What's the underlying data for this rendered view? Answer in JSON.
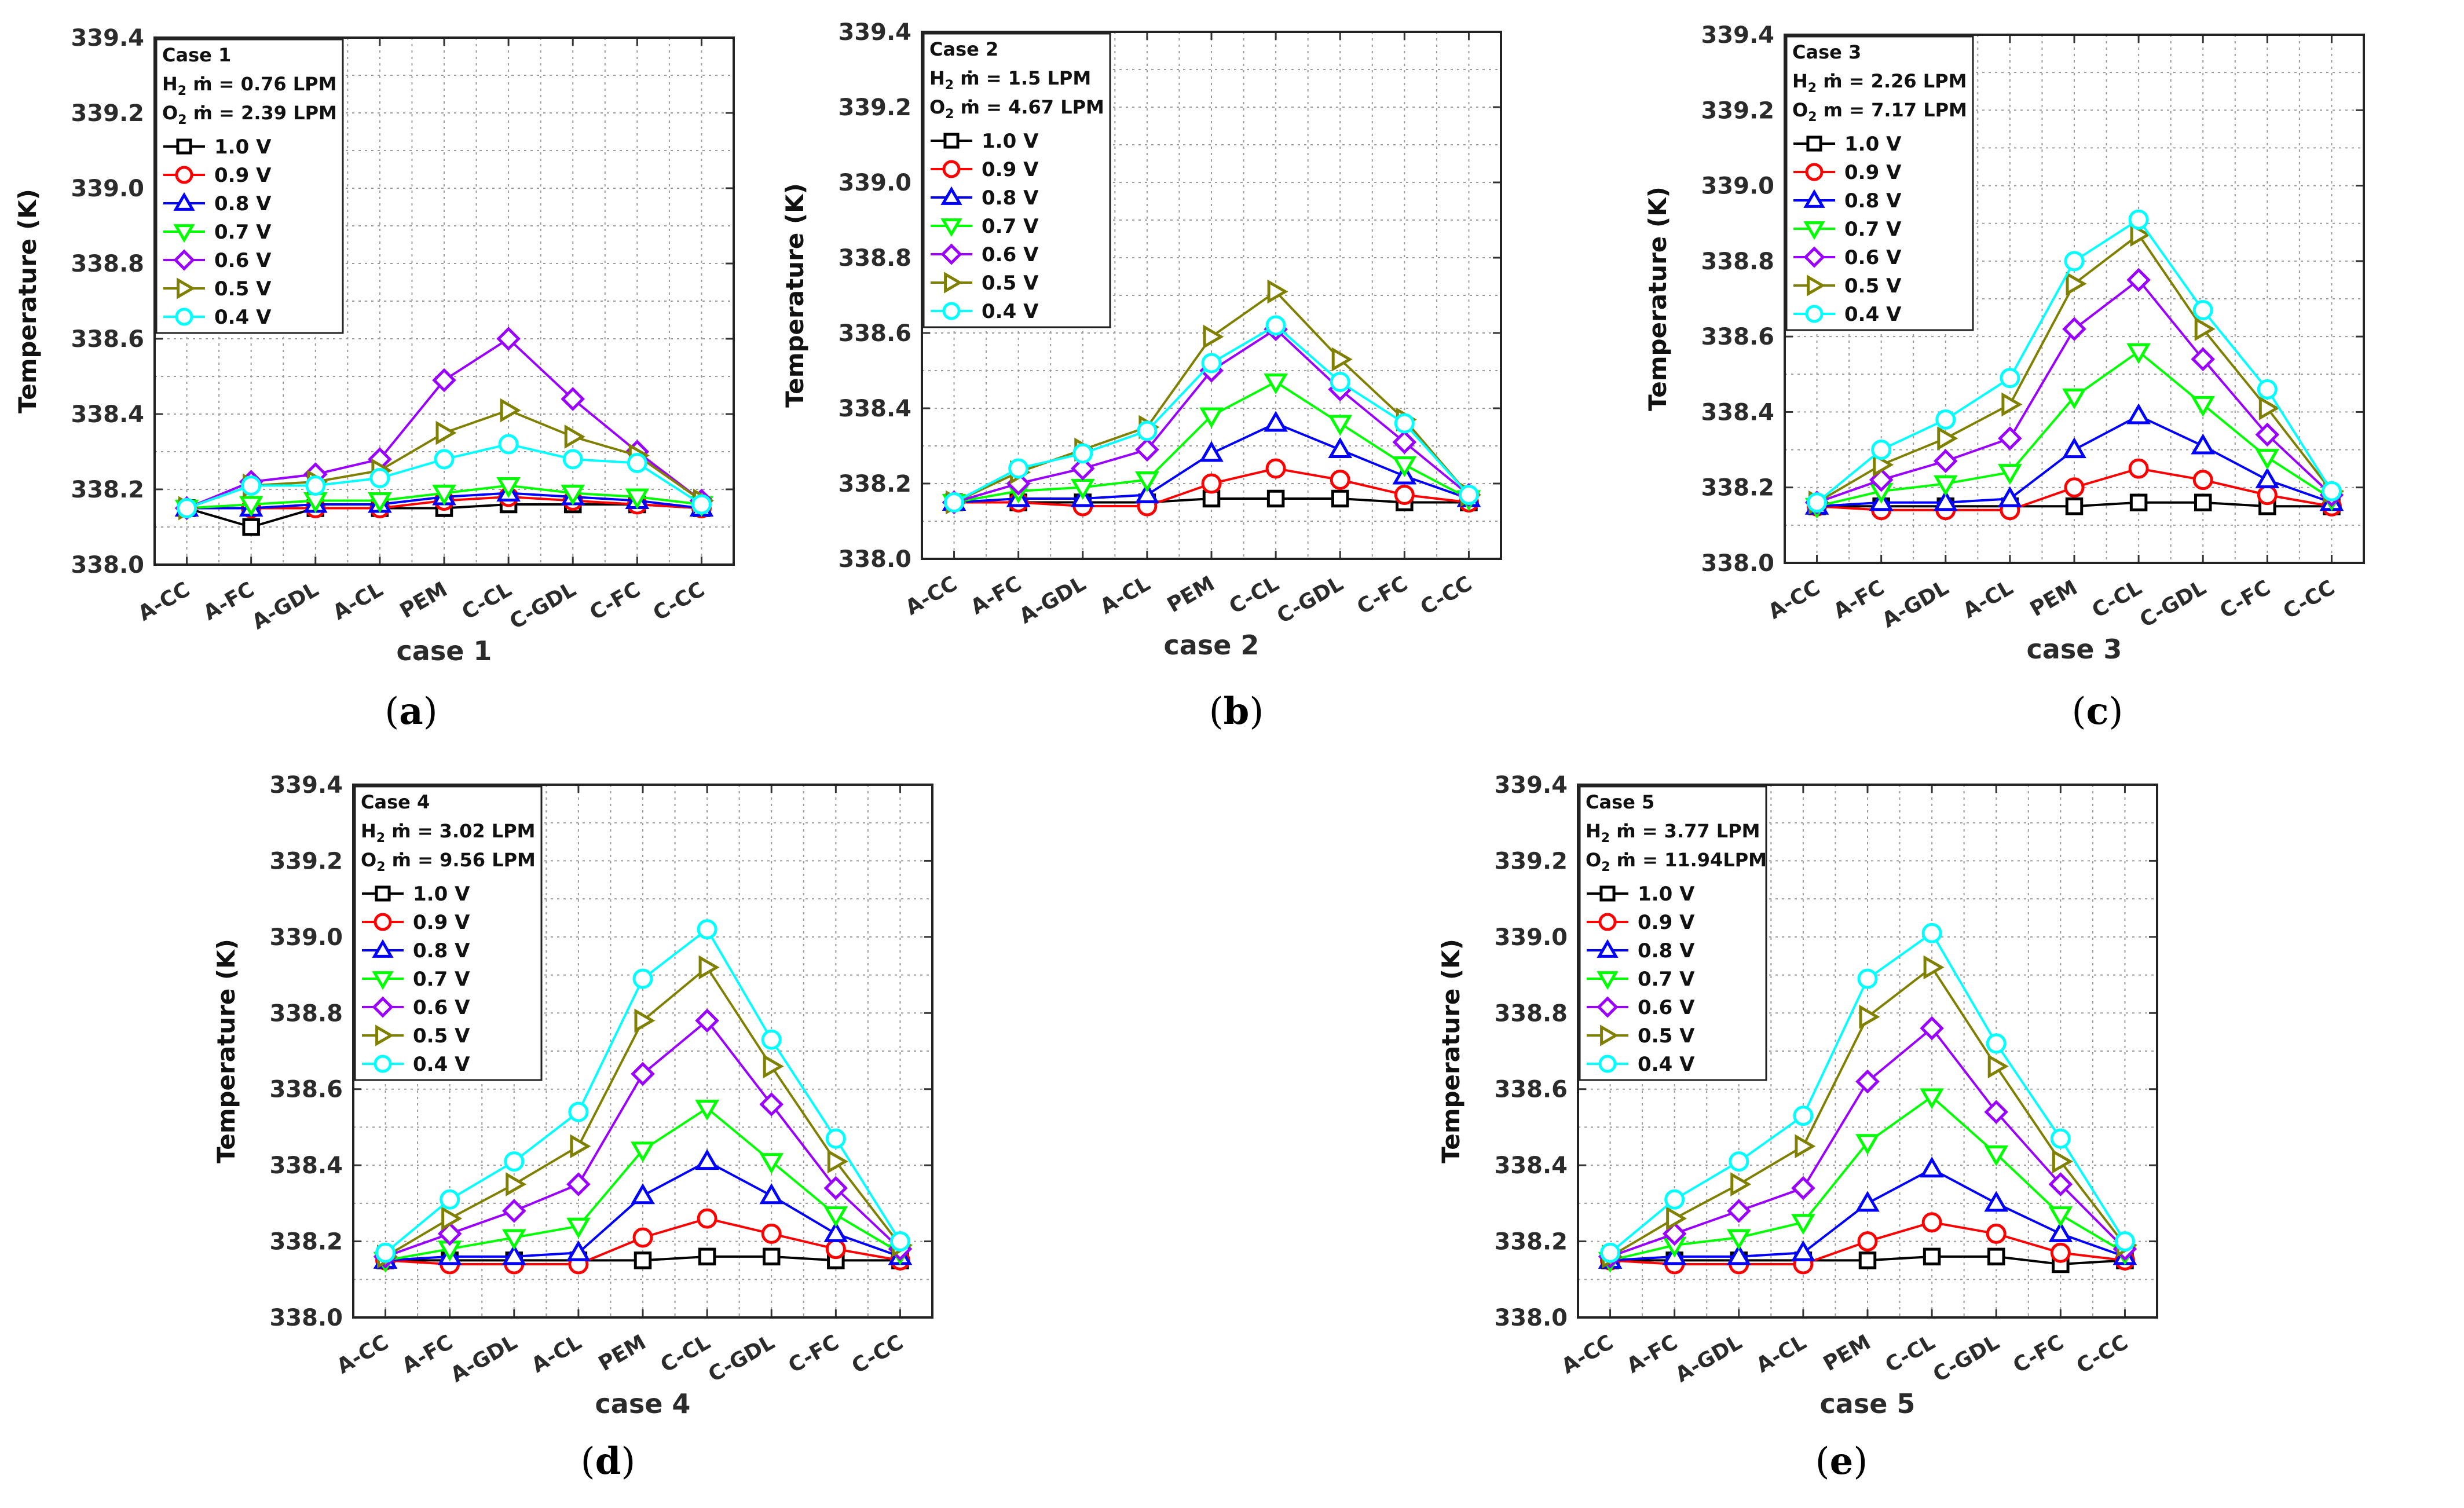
{
  "figure": {
    "panels": [
      {
        "caption_letter": "a"
      },
      {
        "caption_letter": "b"
      },
      {
        "caption_letter": "c"
      },
      {
        "caption_letter": "d"
      },
      {
        "caption_letter": "e"
      }
    ]
  },
  "chart_data": [
    {
      "type": "line",
      "xlabel": "case 1",
      "ylabel": "Temperature (K)",
      "categories": [
        "A-CC",
        "A-FC",
        "A-GDL",
        "A-CL",
        "PEM",
        "C-CL",
        "C-GDL",
        "C-FC",
        "C-CC"
      ],
      "ylim": [
        338.0,
        339.4
      ],
      "yticks": [
        "338.0",
        "338.2",
        "338.4",
        "338.6",
        "338.8",
        "339.0",
        "339.2",
        "339.4"
      ],
      "grid": true,
      "legend_position": "top-left",
      "legend_title": "Case 1",
      "legend_h2_prefix": "H",
      "legend_h2_sub": "2",
      "legend_h2_value": " ṁ = 0.76 LPM",
      "legend_o2_prefix": "O",
      "legend_o2_sub": "2",
      "legend_o2_value": " ṁ = 2.39 LPM",
      "series": [
        {
          "name": "1.0 V",
          "color": "#000000",
          "marker": "square",
          "values": [
            338.15,
            338.1,
            338.15,
            338.15,
            338.15,
            338.16,
            338.16,
            338.16,
            338.15
          ]
        },
        {
          "name": "0.9 V",
          "color": "#ff0000",
          "marker": "circle",
          "values": [
            338.15,
            338.15,
            338.15,
            338.15,
            338.17,
            338.18,
            338.17,
            338.16,
            338.15
          ]
        },
        {
          "name": "0.8 V",
          "color": "#0000ff",
          "marker": "triangle-up",
          "values": [
            338.15,
            338.15,
            338.16,
            338.16,
            338.18,
            338.19,
            338.18,
            338.17,
            338.15
          ]
        },
        {
          "name": "0.7 V",
          "color": "#00ff00",
          "marker": "triangle-down",
          "values": [
            338.15,
            338.16,
            338.17,
            338.17,
            338.19,
            338.21,
            338.19,
            338.18,
            338.16
          ]
        },
        {
          "name": "0.6 V",
          "color": "#9900ff",
          "marker": "diamond",
          "values": [
            338.15,
            338.22,
            338.24,
            338.28,
            338.49,
            338.6,
            338.44,
            338.3,
            338.17
          ]
        },
        {
          "name": "0.5 V",
          "color": "#808000",
          "marker": "triangle-right",
          "values": [
            338.15,
            338.21,
            338.22,
            338.25,
            338.35,
            338.41,
            338.34,
            338.29,
            338.17
          ]
        },
        {
          "name": "0.4 V",
          "color": "#00ffff",
          "marker": "circle",
          "values": [
            338.15,
            338.21,
            338.21,
            338.23,
            338.28,
            338.32,
            338.28,
            338.27,
            338.16
          ]
        }
      ]
    },
    {
      "type": "line",
      "xlabel": "case 2",
      "ylabel": "Temperature (K)",
      "categories": [
        "A-CC",
        "A-FC",
        "A-GDL",
        "A-CL",
        "PEM",
        "C-CL",
        "C-GDL",
        "C-FC",
        "C-CC"
      ],
      "ylim": [
        338.0,
        339.4
      ],
      "yticks": [
        "338.0",
        "338.2",
        "338.4",
        "338.6",
        "338.8",
        "339.0",
        "339.2",
        "339.4"
      ],
      "grid": true,
      "legend_position": "top-left",
      "legend_title": "Case 2",
      "legend_h2_prefix": "H",
      "legend_h2_sub": "2",
      "legend_h2_value": " ṁ = 1.5 LPM",
      "legend_o2_prefix": "O",
      "legend_o2_sub": "2",
      "legend_o2_value": " ṁ = 4.67 LPM",
      "series": [
        {
          "name": "1.0 V",
          "color": "#000000",
          "marker": "square",
          "values": [
            338.15,
            338.15,
            338.15,
            338.15,
            338.16,
            338.16,
            338.16,
            338.15,
            338.15
          ]
        },
        {
          "name": "0.9 V",
          "color": "#ff0000",
          "marker": "circle",
          "values": [
            338.15,
            338.15,
            338.14,
            338.14,
            338.2,
            338.24,
            338.21,
            338.17,
            338.15
          ]
        },
        {
          "name": "0.8 V",
          "color": "#0000ff",
          "marker": "triangle-up",
          "values": [
            338.15,
            338.16,
            338.16,
            338.17,
            338.28,
            338.36,
            338.29,
            338.22,
            338.16
          ]
        },
        {
          "name": "0.7 V",
          "color": "#00ff00",
          "marker": "triangle-down",
          "values": [
            338.15,
            338.18,
            338.19,
            338.21,
            338.38,
            338.47,
            338.36,
            338.25,
            338.16
          ]
        },
        {
          "name": "0.6 V",
          "color": "#9900ff",
          "marker": "diamond",
          "values": [
            338.15,
            338.2,
            338.24,
            338.29,
            338.5,
            338.61,
            338.45,
            338.31,
            338.17
          ]
        },
        {
          "name": "0.5 V",
          "color": "#808000",
          "marker": "triangle-right",
          "values": [
            338.15,
            338.23,
            338.29,
            338.35,
            338.59,
            338.71,
            338.53,
            338.37,
            338.17
          ]
        },
        {
          "name": "0.4 V",
          "color": "#00ffff",
          "marker": "circle",
          "values": [
            338.15,
            338.24,
            338.28,
            338.34,
            338.52,
            338.62,
            338.47,
            338.36,
            338.17
          ]
        }
      ]
    },
    {
      "type": "line",
      "xlabel": "case 3",
      "ylabel": "Temperature (K)",
      "categories": [
        "A-CC",
        "A-FC",
        "A-GDL",
        "A-CL",
        "PEM",
        "C-CL",
        "C-GDL",
        "C-FC",
        "C-CC"
      ],
      "ylim": [
        338.0,
        339.4
      ],
      "yticks": [
        "338.0",
        "338.2",
        "338.4",
        "338.6",
        "338.8",
        "339.0",
        "339.2",
        "339.4"
      ],
      "grid": true,
      "legend_position": "top-left",
      "legend_title": "Case 3",
      "legend_h2_prefix": "H",
      "legend_h2_sub": "2",
      "legend_h2_value": " ṁ = 2.26 LPM",
      "legend_o2_prefix": "O",
      "legend_o2_sub": "2",
      "legend_o2_value": " m = 7.17 LPM",
      "series": [
        {
          "name": "1.0 V",
          "color": "#000000",
          "marker": "square",
          "values": [
            338.15,
            338.15,
            338.15,
            338.15,
            338.15,
            338.16,
            338.16,
            338.15,
            338.15
          ]
        },
        {
          "name": "0.9 V",
          "color": "#ff0000",
          "marker": "circle",
          "values": [
            338.15,
            338.14,
            338.14,
            338.14,
            338.2,
            338.25,
            338.22,
            338.18,
            338.15
          ]
        },
        {
          "name": "0.8 V",
          "color": "#0000ff",
          "marker": "triangle-up",
          "values": [
            338.15,
            338.16,
            338.16,
            338.17,
            338.3,
            338.39,
            338.31,
            338.22,
            338.16
          ]
        },
        {
          "name": "0.7 V",
          "color": "#00ff00",
          "marker": "triangle-down",
          "values": [
            338.15,
            338.19,
            338.21,
            338.24,
            338.44,
            338.56,
            338.42,
            338.28,
            338.17
          ]
        },
        {
          "name": "0.6 V",
          "color": "#9900ff",
          "marker": "diamond",
          "values": [
            338.16,
            338.22,
            338.27,
            338.33,
            338.62,
            338.75,
            338.54,
            338.34,
            338.18
          ]
        },
        {
          "name": "0.5 V",
          "color": "#808000",
          "marker": "triangle-right",
          "values": [
            338.16,
            338.26,
            338.33,
            338.42,
            338.74,
            338.87,
            338.62,
            338.41,
            338.19
          ]
        },
        {
          "name": "0.4 V",
          "color": "#00ffff",
          "marker": "circle",
          "values": [
            338.16,
            338.3,
            338.38,
            338.49,
            338.8,
            338.91,
            338.67,
            338.46,
            338.19
          ]
        }
      ]
    },
    {
      "type": "line",
      "xlabel": "case 4",
      "ylabel": "Temperature (K)",
      "categories": [
        "A-CC",
        "A-FC",
        "A-GDL",
        "A-CL",
        "PEM",
        "C-CL",
        "C-GDL",
        "C-FC",
        "C-CC"
      ],
      "ylim": [
        338.0,
        339.4
      ],
      "yticks": [
        "338.0",
        "338.2",
        "338.4",
        "338.6",
        "338.8",
        "339.0",
        "339.2",
        "339.4"
      ],
      "grid": true,
      "legend_position": "top-left",
      "legend_title": "Case 4",
      "legend_h2_prefix": "H",
      "legend_h2_sub": "2",
      "legend_h2_value": " ṁ = 3.02 LPM",
      "legend_o2_prefix": "O",
      "legend_o2_sub": "2",
      "legend_o2_value": " ṁ = 9.56 LPM",
      "series": [
        {
          "name": "1.0 V",
          "color": "#000000",
          "marker": "square",
          "values": [
            338.15,
            338.15,
            338.15,
            338.15,
            338.15,
            338.16,
            338.16,
            338.15,
            338.15
          ]
        },
        {
          "name": "0.9 V",
          "color": "#ff0000",
          "marker": "circle",
          "values": [
            338.15,
            338.14,
            338.14,
            338.14,
            338.21,
            338.26,
            338.22,
            338.18,
            338.15
          ]
        },
        {
          "name": "0.8 V",
          "color": "#0000ff",
          "marker": "triangle-up",
          "values": [
            338.15,
            338.16,
            338.16,
            338.17,
            338.32,
            338.41,
            338.32,
            338.22,
            338.16
          ]
        },
        {
          "name": "0.7 V",
          "color": "#00ff00",
          "marker": "triangle-down",
          "values": [
            338.15,
            338.18,
            338.21,
            338.24,
            338.44,
            338.55,
            338.41,
            338.27,
            338.17
          ]
        },
        {
          "name": "0.6 V",
          "color": "#9900ff",
          "marker": "diamond",
          "values": [
            338.16,
            338.22,
            338.28,
            338.35,
            338.64,
            338.78,
            338.56,
            338.34,
            338.18
          ]
        },
        {
          "name": "0.5 V",
          "color": "#808000",
          "marker": "triangle-right",
          "values": [
            338.16,
            338.26,
            338.35,
            338.45,
            338.78,
            338.92,
            338.66,
            338.41,
            338.19
          ]
        },
        {
          "name": "0.4 V",
          "color": "#00ffff",
          "marker": "circle",
          "values": [
            338.17,
            338.31,
            338.41,
            338.54,
            338.89,
            339.02,
            338.73,
            338.47,
            338.2
          ]
        }
      ]
    },
    {
      "type": "line",
      "xlabel": "case 5",
      "ylabel": "Temperature (K)",
      "categories": [
        "A-CC",
        "A-FC",
        "A-GDL",
        "A-CL",
        "PEM",
        "C-CL",
        "C-GDL",
        "C-FC",
        "C-CC"
      ],
      "ylim": [
        338.0,
        339.4
      ],
      "yticks": [
        "338.0",
        "338.2",
        "338.4",
        "338.6",
        "338.8",
        "339.0",
        "339.2",
        "339.4"
      ],
      "grid": true,
      "legend_position": "top-left",
      "legend_title": "Case 5",
      "legend_h2_prefix": "H",
      "legend_h2_sub": "2",
      "legend_h2_value": " ṁ = 3.77 LPM",
      "legend_o2_prefix": "O",
      "legend_o2_sub": "2",
      "legend_o2_value": " ṁ = 11.94LPM",
      "series": [
        {
          "name": "1.0 V",
          "color": "#000000",
          "marker": "square",
          "values": [
            338.15,
            338.15,
            338.15,
            338.15,
            338.15,
            338.16,
            338.16,
            338.14,
            338.15
          ]
        },
        {
          "name": "0.9 V",
          "color": "#ff0000",
          "marker": "circle",
          "values": [
            338.15,
            338.14,
            338.14,
            338.14,
            338.2,
            338.25,
            338.22,
            338.17,
            338.15
          ]
        },
        {
          "name": "0.8 V",
          "color": "#0000ff",
          "marker": "triangle-up",
          "values": [
            338.15,
            338.16,
            338.16,
            338.17,
            338.3,
            338.39,
            338.3,
            338.22,
            338.16
          ]
        },
        {
          "name": "0.7 V",
          "color": "#00ff00",
          "marker": "triangle-down",
          "values": [
            338.15,
            338.19,
            338.21,
            338.25,
            338.46,
            338.58,
            338.43,
            338.27,
            338.17
          ]
        },
        {
          "name": "0.6 V",
          "color": "#9900ff",
          "marker": "diamond",
          "values": [
            338.16,
            338.22,
            338.28,
            338.34,
            338.62,
            338.76,
            338.54,
            338.35,
            338.18
          ]
        },
        {
          "name": "0.5 V",
          "color": "#808000",
          "marker": "triangle-right",
          "values": [
            338.16,
            338.26,
            338.35,
            338.45,
            338.79,
            338.92,
            338.66,
            338.41,
            338.19
          ]
        },
        {
          "name": "0.4 V",
          "color": "#00ffff",
          "marker": "circle",
          "values": [
            338.17,
            338.31,
            338.41,
            338.53,
            338.89,
            339.01,
            338.72,
            338.47,
            338.2
          ]
        }
      ]
    }
  ]
}
